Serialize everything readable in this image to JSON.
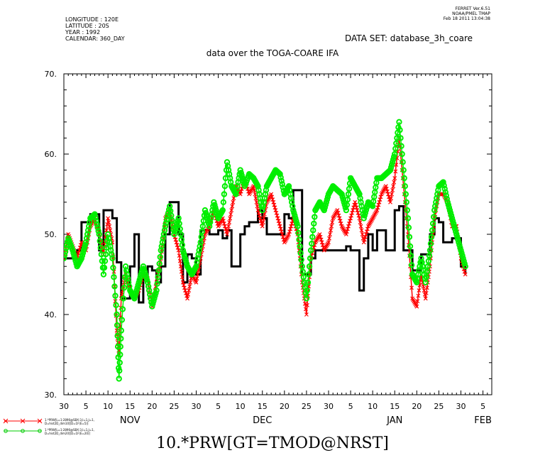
{
  "header": {
    "meta_left": [
      "LONGITUDE : 120E",
      "LATITUDE : 20S",
      "YEAR : 1992",
      "CALENDAR: 360_DAY"
    ],
    "meta_right": [
      "FERRET  Ver.6.51",
      "NOAA/PMEL TMAP",
      "Feb 18 2011 13:04:38"
    ],
    "dataset": "DATA SET: database_3h_coare",
    "subtitle": "data over the TOGA-COARE IFA"
  },
  "legend": {
    "items": [
      {
        "color": "#ff0000",
        "marker": "x",
        "text": [
          "1.*PRW[L=1:2896@SBX:3,I=1,J=1,",
          "D=hist2D_dim10][D=1F(E=5)]"
        ]
      },
      {
        "color": "#00cc00",
        "marker": "o",
        "text": [
          "1.*PRW[L=1:2896@SBX:3,I=1,J=1,",
          "D=hist2D_dim20][D=1F(E=20)]"
        ]
      }
    ]
  },
  "bottom_title": "10.*PRW[GT=TMOD@NRST]",
  "chart_data": {
    "type": "line",
    "title": "data over the TOGA-COARE IFA",
    "xlabel": "",
    "ylabel": "",
    "ylim": [
      30,
      70
    ],
    "yticks": [
      30,
      40,
      50,
      60,
      70
    ],
    "ytick_labels": [
      "30.",
      "40.",
      "50.",
      "60.",
      "70."
    ],
    "xlim": [
      0,
      97
    ],
    "xtick_positions": [
      0,
      5,
      10,
      15,
      20,
      25,
      30,
      35,
      40,
      45,
      50,
      55,
      60,
      65,
      70,
      75,
      80,
      85,
      90,
      95,
      97
    ],
    "xtick_labels": [
      "30",
      "5",
      "10",
      "15",
      "20",
      "25",
      "30",
      "5",
      "10",
      "15",
      "20",
      "25",
      "30",
      "5",
      "10",
      "15",
      "20",
      "25",
      "30",
      "5",
      ""
    ],
    "month_labels": [
      {
        "label": "NOV",
        "day": 15
      },
      {
        "label": "DEC",
        "day": 45
      },
      {
        "label": "JAN",
        "day": 75
      },
      {
        "label": "FEB",
        "day": 95
      }
    ],
    "colors": {
      "black": "#000000",
      "red": "#ff0000",
      "green": "#00ee00"
    },
    "series": [
      {
        "name": "",
        "style": "step",
        "color": "#000000",
        "points": [
          [
            0,
            47
          ],
          [
            2,
            47
          ],
          [
            3,
            48
          ],
          [
            4,
            51.5
          ],
          [
            5,
            51.5
          ],
          [
            6,
            52.5
          ],
          [
            7,
            52.5
          ],
          [
            8,
            48
          ],
          [
            9,
            53
          ],
          [
            10,
            53
          ],
          [
            11,
            52
          ],
          [
            12,
            46.5
          ],
          [
            13,
            42
          ],
          [
            14,
            42
          ],
          [
            15,
            46
          ],
          [
            16,
            50
          ],
          [
            17,
            41.5
          ],
          [
            18,
            45
          ],
          [
            19,
            46
          ],
          [
            20,
            45.5
          ],
          [
            21,
            44
          ],
          [
            22,
            46
          ],
          [
            23,
            50
          ],
          [
            24,
            54
          ],
          [
            25,
            54
          ],
          [
            26,
            50
          ],
          [
            27,
            44
          ],
          [
            28,
            47.5
          ],
          [
            29,
            47
          ],
          [
            30,
            45
          ],
          [
            31,
            50.5
          ],
          [
            32,
            50.5
          ],
          [
            33,
            50
          ],
          [
            34,
            50
          ],
          [
            35,
            50.5
          ],
          [
            36,
            49.5
          ],
          [
            37,
            50.5
          ],
          [
            38,
            46
          ],
          [
            39,
            46
          ],
          [
            40,
            50
          ],
          [
            41,
            51
          ],
          [
            42,
            51.5
          ],
          [
            43,
            51.5
          ],
          [
            44,
            53
          ],
          [
            45,
            52
          ],
          [
            46,
            50
          ],
          [
            47,
            50
          ],
          [
            48,
            50
          ],
          [
            49,
            50
          ],
          [
            50,
            52.5
          ],
          [
            51,
            52
          ],
          [
            52,
            55.5
          ],
          [
            53,
            55.5
          ],
          [
            54,
            45
          ],
          [
            55,
            45
          ],
          [
            56,
            47
          ],
          [
            57,
            48
          ],
          [
            58,
            48
          ],
          [
            59,
            48
          ],
          [
            60,
            48
          ],
          [
            61,
            48
          ],
          [
            62,
            48
          ],
          [
            63,
            48
          ],
          [
            64,
            48.5
          ],
          [
            65,
            48
          ],
          [
            66,
            48
          ],
          [
            67,
            43
          ],
          [
            68,
            47
          ],
          [
            69,
            50
          ],
          [
            70,
            48
          ],
          [
            71,
            50.5
          ],
          [
            72,
            50.5
          ],
          [
            73,
            48
          ],
          [
            74,
            48
          ],
          [
            75,
            53
          ],
          [
            76,
            53.5
          ],
          [
            77,
            48
          ],
          [
            78,
            48
          ],
          [
            79,
            45.5
          ],
          [
            80,
            45.5
          ],
          [
            81,
            47.5
          ],
          [
            82,
            47.5
          ],
          [
            83,
            50
          ],
          [
            84,
            52
          ],
          [
            85,
            51.5
          ],
          [
            86,
            49
          ],
          [
            87,
            49
          ],
          [
            88,
            49.5
          ],
          [
            89,
            49.5
          ],
          [
            90,
            46
          ],
          [
            91,
            45
          ]
        ]
      },
      {
        "name": "",
        "style": "xline",
        "color": "#ff0000",
        "points": [
          [
            0,
            47
          ],
          [
            1,
            50
          ],
          [
            2,
            48.5
          ],
          [
            3,
            47
          ],
          [
            4,
            49
          ],
          [
            5,
            48
          ],
          [
            6,
            51
          ],
          [
            7,
            52
          ],
          [
            8,
            50
          ],
          [
            9,
            47.5
          ],
          [
            10,
            52
          ],
          [
            11,
            49
          ],
          [
            12,
            38
          ],
          [
            12.5,
            35
          ],
          [
            13,
            42
          ],
          [
            14,
            45
          ],
          [
            15,
            43
          ],
          [
            16,
            42
          ],
          [
            17,
            43
          ],
          [
            18,
            45
          ],
          [
            19,
            44.5
          ],
          [
            20,
            41
          ],
          [
            21,
            44
          ],
          [
            22,
            47
          ],
          [
            23,
            52
          ],
          [
            24,
            53
          ],
          [
            25,
            50
          ],
          [
            26,
            48
          ],
          [
            27,
            44
          ],
          [
            28,
            42
          ],
          [
            29,
            45
          ],
          [
            30,
            44
          ],
          [
            31,
            47
          ],
          [
            32,
            50
          ],
          [
            33,
            51
          ],
          [
            34,
            53
          ],
          [
            35,
            51
          ],
          [
            36,
            52
          ],
          [
            37,
            50
          ],
          [
            38,
            53
          ],
          [
            39,
            56
          ],
          [
            40,
            55
          ],
          [
            41,
            57
          ],
          [
            42,
            55
          ],
          [
            43,
            56
          ],
          [
            44,
            53
          ],
          [
            45,
            51
          ],
          [
            46,
            54
          ],
          [
            47,
            55
          ],
          [
            48,
            53
          ],
          [
            49,
            51
          ],
          [
            50,
            49
          ],
          [
            51,
            50
          ],
          [
            52,
            52
          ],
          [
            53,
            50
          ],
          [
            54,
            44
          ],
          [
            55,
            40
          ],
          [
            56,
            47
          ],
          [
            57,
            49
          ],
          [
            58,
            50
          ],
          [
            59,
            48
          ],
          [
            60,
            49
          ],
          [
            61,
            52
          ],
          [
            62,
            53
          ],
          [
            63,
            51
          ],
          [
            64,
            50
          ],
          [
            65,
            52
          ],
          [
            66,
            54
          ],
          [
            67,
            52
          ],
          [
            68,
            49
          ],
          [
            69,
            51
          ],
          [
            70,
            52
          ],
          [
            71,
            53
          ],
          [
            72,
            55
          ],
          [
            73,
            56
          ],
          [
            74,
            54
          ],
          [
            75,
            57
          ],
          [
            76,
            62
          ],
          [
            77,
            56
          ],
          [
            78,
            50
          ],
          [
            79,
            42
          ],
          [
            80,
            41
          ],
          [
            81,
            45
          ],
          [
            82,
            42
          ],
          [
            83,
            46
          ],
          [
            84,
            52
          ],
          [
            85,
            55
          ],
          [
            86,
            55
          ],
          [
            87,
            54
          ],
          [
            88,
            51
          ],
          [
            89,
            51
          ],
          [
            90,
            47
          ],
          [
            91,
            45
          ]
        ]
      },
      {
        "name": "",
        "style": "oline",
        "color": "#00ee00",
        "points": [
          [
            0,
            47
          ],
          [
            1,
            49.5
          ],
          [
            2,
            48
          ],
          [
            3,
            46
          ],
          [
            4,
            47
          ],
          [
            5,
            49
          ],
          [
            6,
            52
          ],
          [
            7,
            52.5
          ],
          [
            8,
            50
          ],
          [
            9,
            45
          ],
          [
            10,
            50
          ],
          [
            11,
            47
          ],
          [
            12,
            40
          ],
          [
            12.5,
            32
          ],
          [
            13,
            38
          ],
          [
            14,
            46
          ],
          [
            15,
            43
          ],
          [
            16,
            42
          ],
          [
            17,
            44
          ],
          [
            18,
            46
          ],
          [
            19,
            44
          ],
          [
            20,
            41
          ],
          [
            21,
            43
          ],
          [
            22,
            48
          ],
          [
            23,
            51
          ],
          [
            24,
            53.5
          ],
          [
            25,
            50
          ],
          [
            26,
            52
          ],
          [
            27,
            48
          ],
          [
            28,
            46
          ],
          [
            29,
            45
          ],
          [
            30,
            46
          ],
          [
            31,
            49
          ],
          [
            32,
            53
          ],
          [
            33,
            51
          ],
          [
            34,
            54
          ],
          [
            35,
            52
          ],
          [
            36,
            53
          ],
          [
            37,
            59
          ],
          [
            38,
            56
          ],
          [
            39,
            55
          ],
          [
            40,
            58
          ],
          [
            41,
            56
          ],
          [
            42,
            57.5
          ],
          [
            43,
            57
          ],
          [
            44,
            56
          ],
          [
            45,
            53
          ],
          [
            46,
            56
          ],
          [
            47,
            57
          ],
          [
            48,
            58
          ],
          [
            49,
            57.5
          ],
          [
            50,
            55
          ],
          [
            51,
            56
          ],
          [
            52,
            53
          ],
          [
            53,
            51
          ],
          [
            54,
            46
          ],
          [
            55,
            42
          ],
          [
            56,
            48
          ],
          [
            57,
            53
          ],
          [
            58,
            54
          ],
          [
            59,
            53
          ],
          [
            60,
            55
          ],
          [
            61,
            56
          ],
          [
            62,
            55.5
          ],
          [
            63,
            55
          ],
          [
            64,
            53
          ],
          [
            65,
            57
          ],
          [
            66,
            56
          ],
          [
            67,
            55
          ],
          [
            68,
            52
          ],
          [
            69,
            54
          ],
          [
            70,
            53.5
          ],
          [
            71,
            57
          ],
          [
            72,
            57
          ],
          [
            73,
            57.5
          ],
          [
            74,
            58
          ],
          [
            75,
            60
          ],
          [
            76,
            64
          ],
          [
            77,
            58
          ],
          [
            78,
            52
          ],
          [
            79,
            45
          ],
          [
            80,
            44
          ],
          [
            81,
            47
          ],
          [
            82,
            44
          ],
          [
            83,
            48
          ],
          [
            84,
            53
          ],
          [
            85,
            56
          ],
          [
            86,
            56.5
          ],
          [
            87,
            54
          ],
          [
            88,
            52
          ],
          [
            89,
            50
          ],
          [
            90,
            48
          ],
          [
            91,
            46
          ]
        ]
      }
    ]
  }
}
